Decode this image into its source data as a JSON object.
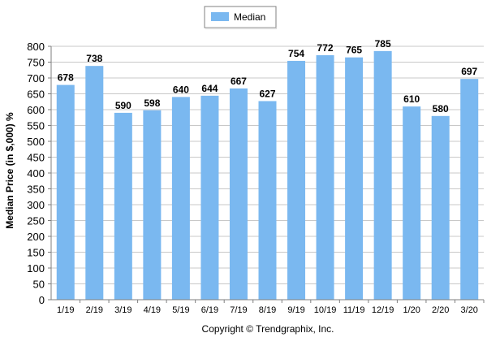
{
  "colors": {
    "bar": "#7ab8f0",
    "grid": "#c8c8c8",
    "axis": "#7f7f7f",
    "text": "#000000"
  },
  "chart_data": {
    "type": "bar",
    "categories": [
      "1/19",
      "2/19",
      "3/19",
      "4/19",
      "5/19",
      "6/19",
      "7/19",
      "8/19",
      "9/19",
      "10/19",
      "11/19",
      "12/19",
      "1/20",
      "2/20",
      "3/20"
    ],
    "series": [
      {
        "name": "Median",
        "values": [
          678,
          738,
          590,
          598,
          640,
          644,
          667,
          627,
          754,
          772,
          765,
          785,
          610,
          580,
          697
        ]
      }
    ],
    "data_labels": [
      "678",
      "738",
      "590",
      "598",
      "640",
      "644",
      "667",
      "627",
      "754",
      "772",
      "765",
      "785",
      "610",
      "580",
      "697"
    ],
    "ylabel": "Median Price (in $,000) %",
    "ylim": [
      0,
      800
    ],
    "yticks": [
      0,
      50,
      100,
      150,
      200,
      250,
      300,
      350,
      400,
      450,
      500,
      550,
      600,
      650,
      700,
      750,
      800
    ],
    "grid": true,
    "legend_position": "top-center"
  },
  "footer": {
    "copyright": "Copyright © Trendgraphix, Inc."
  }
}
